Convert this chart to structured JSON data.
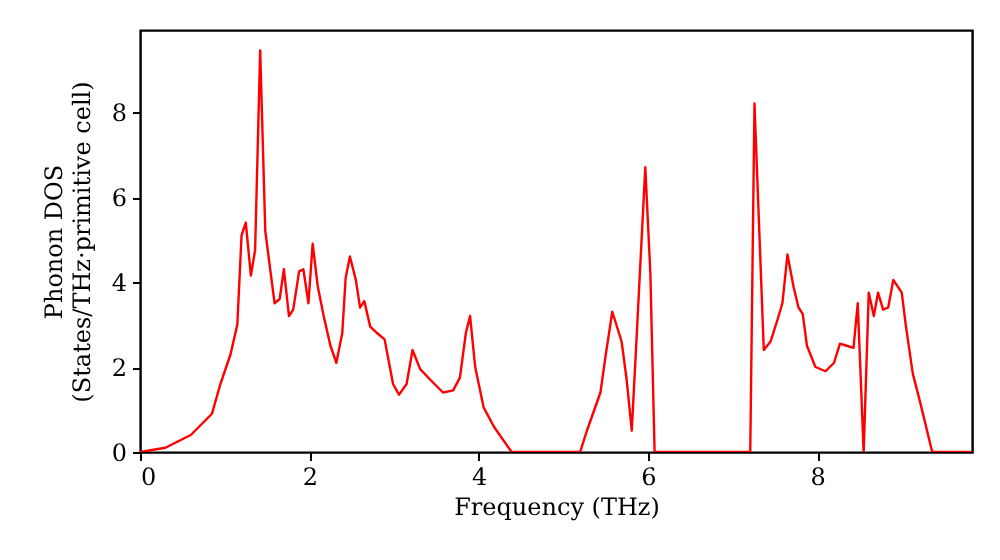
{
  "chart_data": {
    "type": "line",
    "xlabel": "Frequency (THz)",
    "ylabel": "Phonon DOS\n(States/THz·primitive cell)",
    "x": [
      0,
      0.3,
      0.6,
      0.85,
      0.95,
      1.07,
      1.15,
      1.2,
      1.25,
      1.31,
      1.36,
      1.42,
      1.48,
      1.59,
      1.65,
      1.7,
      1.76,
      1.81,
      1.88,
      1.93,
      1.99,
      2.04,
      2.1,
      2.17,
      2.25,
      2.32,
      2.39,
      2.43,
      2.48,
      2.55,
      2.6,
      2.65,
      2.72,
      2.8,
      2.89,
      2.99,
      3.06,
      3.15,
      3.22,
      3.31,
      3.43,
      3.58,
      3.7,
      3.78,
      3.85,
      3.9,
      3.96,
      4.06,
      4.18,
      4.39,
      5.2,
      5.28,
      5.44,
      5.5,
      5.58,
      5.69,
      5.75,
      5.81,
      5.87,
      5.97,
      6.03,
      6.08,
      7.21,
      7.26,
      7.37,
      7.45,
      7.53,
      7.59,
      7.65,
      7.72,
      7.78,
      7.83,
      7.88,
      7.98,
      8.1,
      8.2,
      8.27,
      8.35,
      8.43,
      8.48,
      8.55,
      8.61,
      8.67,
      8.72,
      8.78,
      8.84,
      8.9,
      9.0,
      9.05,
      9.13,
      9.22,
      9.36,
      9.83
    ],
    "values": [
      0,
      0.1,
      0.4,
      0.9,
      1.6,
      2.3,
      3.0,
      5.1,
      5.4,
      4.15,
      4.75,
      9.45,
      5.2,
      3.5,
      3.6,
      4.3,
      3.2,
      3.35,
      4.25,
      4.3,
      3.5,
      4.9,
      3.9,
      3.2,
      2.5,
      2.1,
      2.8,
      4.1,
      4.6,
      4.05,
      3.4,
      3.55,
      2.95,
      2.8,
      2.65,
      1.6,
      1.35,
      1.6,
      2.4,
      1.95,
      1.7,
      1.4,
      1.45,
      1.75,
      2.8,
      3.2,
      2.0,
      1.05,
      0.6,
      0,
      0,
      0.5,
      1.4,
      2.25,
      3.3,
      2.6,
      1.7,
      0.5,
      2.8,
      6.7,
      4.2,
      0,
      0,
      8.2,
      2.4,
      2.6,
      3.1,
      3.5,
      4.65,
      3.9,
      3.4,
      3.25,
      2.5,
      2.0,
      1.9,
      2.1,
      2.55,
      2.5,
      2.45,
      3.5,
      0,
      3.75,
      3.2,
      3.75,
      3.35,
      3.4,
      4.05,
      3.75,
      2.95,
      1.85,
      1.15,
      0,
      0
    ],
    "color": "#ff0000",
    "xlim": [
      0,
      9.83
    ],
    "ylim": [
      0,
      9.93
    ],
    "xticks": [
      0,
      2,
      4,
      6,
      8
    ],
    "yticks": [
      0,
      2,
      4,
      6,
      8
    ],
    "grid": false
  }
}
